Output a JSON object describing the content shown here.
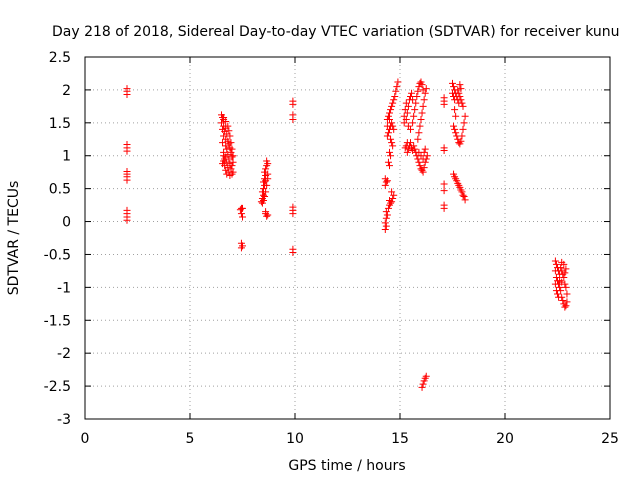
{
  "chart_data": {
    "type": "scatter",
    "title": "Day 218 of 2018, Sidereal Day-to-day VTEC variation (SDTVAR) for receiver kunu",
    "xlabel": "GPS time / hours",
    "ylabel": "SDTVAR / TECUs",
    "xlim": [
      0,
      25
    ],
    "ylim": [
      -3,
      2.5
    ],
    "x_ticks": [
      0,
      5,
      10,
      15,
      20,
      25
    ],
    "x_tick_labels": [
      "0",
      "5",
      "10",
      "15",
      "20",
      "25"
    ],
    "y_ticks": [
      -3,
      -2.5,
      -2,
      -1.5,
      -1,
      -0.5,
      0,
      0.5,
      1,
      1.5,
      2,
      2.5
    ],
    "y_tick_labels": [
      "-3",
      "-2.5",
      "-2",
      "-1.5",
      "-1",
      "-0.5",
      "0",
      "0.5",
      "1",
      "1.5",
      "2",
      "2.5"
    ],
    "grid": true,
    "marker": "+",
    "color": "#ff0000",
    "series": [
      {
        "name": "SDTVAR",
        "points": [
          [
            2.0,
            2.02
          ],
          [
            2.0,
            1.98
          ],
          [
            2.0,
            1.93
          ],
          [
            2.0,
            1.17
          ],
          [
            2.0,
            1.12
          ],
          [
            2.0,
            1.07
          ],
          [
            2.0,
            0.76
          ],
          [
            2.0,
            0.72
          ],
          [
            2.0,
            0.68
          ],
          [
            2.0,
            0.63
          ],
          [
            2.0,
            0.17
          ],
          [
            2.0,
            0.12
          ],
          [
            2.0,
            0.07
          ],
          [
            2.0,
            0.02
          ],
          [
            6.5,
            1.62
          ],
          [
            6.55,
            1.58
          ],
          [
            6.6,
            1.55
          ],
          [
            6.5,
            1.5
          ],
          [
            6.6,
            1.45
          ],
          [
            6.55,
            1.4
          ],
          [
            6.7,
            1.42
          ],
          [
            6.65,
            1.37
          ],
          [
            6.75,
            1.33
          ],
          [
            6.6,
            1.3
          ],
          [
            6.7,
            1.25
          ],
          [
            6.8,
            1.22
          ],
          [
            6.55,
            1.2
          ],
          [
            6.7,
            1.15
          ],
          [
            6.85,
            1.18
          ],
          [
            6.75,
            1.1
          ],
          [
            6.9,
            1.12
          ],
          [
            6.6,
            1.05
          ],
          [
            6.8,
            1.02
          ],
          [
            6.95,
            1.05
          ],
          [
            6.7,
            0.98
          ],
          [
            6.85,
            0.95
          ],
          [
            7.0,
            0.98
          ],
          [
            6.6,
            0.92
          ],
          [
            6.75,
            0.9
          ],
          [
            6.9,
            0.88
          ],
          [
            7.0,
            0.85
          ],
          [
            6.65,
            0.85
          ],
          [
            6.8,
            0.82
          ],
          [
            6.95,
            0.8
          ],
          [
            6.7,
            0.78
          ],
          [
            6.85,
            0.75
          ],
          [
            7.0,
            0.72
          ],
          [
            6.75,
            0.72
          ],
          [
            6.9,
            0.7
          ],
          [
            7.05,
            0.75
          ],
          [
            6.6,
            1.0
          ],
          [
            6.65,
            0.95
          ],
          [
            7.05,
            1.0
          ],
          [
            7.0,
            1.1
          ],
          [
            6.95,
            1.2
          ],
          [
            6.9,
            1.3
          ],
          [
            6.85,
            1.38
          ],
          [
            6.8,
            1.45
          ],
          [
            6.7,
            1.52
          ],
          [
            6.6,
            1.58
          ],
          [
            7.05,
            0.9
          ],
          [
            6.55,
            0.88
          ],
          [
            7.45,
            0.2
          ],
          [
            7.5,
            0.2
          ],
          [
            7.4,
            0.18
          ],
          [
            7.45,
            0.12
          ],
          [
            7.5,
            0.07
          ],
          [
            7.45,
            -0.33
          ],
          [
            7.5,
            -0.37
          ],
          [
            7.45,
            -0.4
          ],
          [
            8.4,
            0.3
          ],
          [
            8.45,
            0.35
          ],
          [
            8.5,
            0.4
          ],
          [
            8.45,
            0.45
          ],
          [
            8.5,
            0.5
          ],
          [
            8.55,
            0.55
          ],
          [
            8.5,
            0.6
          ],
          [
            8.55,
            0.65
          ],
          [
            8.6,
            0.7
          ],
          [
            8.55,
            0.75
          ],
          [
            8.6,
            0.8
          ],
          [
            8.65,
            0.85
          ],
          [
            8.7,
            0.88
          ],
          [
            8.65,
            0.92
          ],
          [
            8.6,
            0.62
          ],
          [
            8.7,
            0.72
          ],
          [
            8.45,
            0.28
          ],
          [
            8.5,
            0.32
          ],
          [
            8.55,
            0.38
          ],
          [
            8.6,
            0.45
          ],
          [
            8.65,
            0.55
          ],
          [
            8.7,
            0.65
          ],
          [
            8.6,
            0.12
          ],
          [
            8.65,
            0.08
          ],
          [
            8.7,
            0.1
          ],
          [
            8.6,
            0.15
          ],
          [
            9.9,
            1.83
          ],
          [
            9.9,
            1.78
          ],
          [
            9.9,
            1.62
          ],
          [
            9.9,
            1.55
          ],
          [
            9.9,
            0.22
          ],
          [
            9.9,
            0.17
          ],
          [
            9.9,
            0.12
          ],
          [
            9.9,
            -0.42
          ],
          [
            9.9,
            -0.47
          ],
          [
            14.3,
            -0.12
          ],
          [
            14.35,
            -0.07
          ],
          [
            14.3,
            -0.02
          ],
          [
            14.35,
            0.05
          ],
          [
            14.4,
            0.1
          ],
          [
            14.35,
            0.15
          ],
          [
            14.3,
            0.55
          ],
          [
            14.35,
            0.6
          ],
          [
            14.4,
            0.62
          ],
          [
            14.3,
            0.65
          ],
          [
            14.45,
            0.2
          ],
          [
            14.5,
            0.25
          ],
          [
            14.55,
            0.28
          ],
          [
            14.6,
            0.3
          ],
          [
            14.65,
            0.35
          ],
          [
            14.5,
            0.32
          ],
          [
            14.7,
            0.4
          ],
          [
            14.6,
            0.45
          ],
          [
            14.4,
            1.3
          ],
          [
            14.45,
            1.35
          ],
          [
            14.5,
            1.4
          ],
          [
            14.55,
            1.45
          ],
          [
            14.4,
            1.55
          ],
          [
            14.45,
            1.6
          ],
          [
            14.5,
            1.65
          ],
          [
            14.55,
            1.7
          ],
          [
            14.6,
            1.75
          ],
          [
            14.65,
            1.8
          ],
          [
            14.7,
            1.85
          ],
          [
            14.75,
            1.9
          ],
          [
            14.8,
            1.98
          ],
          [
            14.85,
            2.05
          ],
          [
            14.9,
            2.12
          ],
          [
            14.6,
            1.5
          ],
          [
            14.65,
            1.45
          ],
          [
            14.7,
            1.4
          ],
          [
            14.55,
            1.25
          ],
          [
            14.6,
            1.2
          ],
          [
            14.65,
            1.15
          ],
          [
            14.5,
            1.05
          ],
          [
            14.55,
            1.0
          ],
          [
            14.45,
            0.9
          ],
          [
            14.5,
            0.85
          ],
          [
            14.4,
            1.45
          ],
          [
            14.5,
            1.55
          ],
          [
            15.2,
            1.6
          ],
          [
            15.25,
            1.7
          ],
          [
            15.3,
            1.8
          ],
          [
            15.2,
            1.5
          ],
          [
            15.3,
            1.55
          ],
          [
            15.35,
            1.65
          ],
          [
            15.4,
            1.75
          ],
          [
            15.45,
            1.85
          ],
          [
            15.5,
            1.9
          ],
          [
            15.55,
            1.95
          ],
          [
            15.6,
            1.85
          ],
          [
            15.4,
            1.45
          ],
          [
            15.5,
            1.4
          ],
          [
            15.6,
            1.5
          ],
          [
            15.65,
            1.6
          ],
          [
            15.7,
            1.7
          ],
          [
            15.75,
            1.8
          ],
          [
            15.8,
            1.9
          ],
          [
            15.85,
            1.98
          ],
          [
            15.9,
            2.05
          ],
          [
            15.95,
            2.1
          ],
          [
            16.0,
            2.12
          ],
          [
            16.05,
            2.08
          ],
          [
            16.1,
            2.0
          ],
          [
            15.3,
            1.15
          ],
          [
            15.35,
            1.2
          ],
          [
            15.4,
            1.1
          ],
          [
            15.45,
            1.15
          ],
          [
            15.5,
            1.2
          ],
          [
            15.55,
            1.12
          ],
          [
            15.6,
            1.08
          ],
          [
            15.65,
            1.15
          ],
          [
            15.7,
            1.1
          ],
          [
            15.75,
            1.05
          ],
          [
            15.8,
            1.0
          ],
          [
            15.85,
            0.95
          ],
          [
            15.9,
            0.9
          ],
          [
            15.95,
            0.85
          ],
          [
            16.0,
            0.8
          ],
          [
            16.05,
            0.78
          ],
          [
            16.1,
            0.75
          ],
          [
            16.15,
            0.82
          ],
          [
            16.2,
            0.9
          ],
          [
            16.25,
            0.95
          ],
          [
            16.3,
            1.0
          ],
          [
            15.9,
            1.05
          ],
          [
            16.0,
            1.0
          ],
          [
            16.1,
            0.95
          ],
          [
            16.15,
            1.05
          ],
          [
            16.2,
            1.1
          ],
          [
            15.85,
            1.25
          ],
          [
            15.9,
            1.35
          ],
          [
            15.95,
            1.45
          ],
          [
            16.0,
            1.55
          ],
          [
            16.05,
            1.65
          ],
          [
            16.1,
            1.75
          ],
          [
            16.15,
            1.85
          ],
          [
            16.2,
            1.95
          ],
          [
            16.25,
            2.02
          ],
          [
            15.25,
            1.12
          ],
          [
            15.35,
            1.05
          ],
          [
            16.05,
            -2.52
          ],
          [
            16.1,
            -2.47
          ],
          [
            16.15,
            -2.42
          ],
          [
            16.2,
            -2.38
          ],
          [
            16.25,
            -2.35
          ],
          [
            17.1,
            1.88
          ],
          [
            17.1,
            1.83
          ],
          [
            17.1,
            1.78
          ],
          [
            17.1,
            1.12
          ],
          [
            17.1,
            1.08
          ],
          [
            17.1,
            0.57
          ],
          [
            17.1,
            0.47
          ],
          [
            17.1,
            0.25
          ],
          [
            17.1,
            0.2
          ],
          [
            17.5,
            2.1
          ],
          [
            17.55,
            2.05
          ],
          [
            17.6,
            2.0
          ],
          [
            17.65,
            1.95
          ],
          [
            17.7,
            1.9
          ],
          [
            17.5,
            1.95
          ],
          [
            17.55,
            1.9
          ],
          [
            17.6,
            1.85
          ],
          [
            17.75,
            2.0
          ],
          [
            17.8,
            1.95
          ],
          [
            17.85,
            1.9
          ],
          [
            17.9,
            1.85
          ],
          [
            17.95,
            1.8
          ],
          [
            18.0,
            1.75
          ],
          [
            17.75,
            1.85
          ],
          [
            17.8,
            1.8
          ],
          [
            17.85,
            2.08
          ],
          [
            17.9,
            2.02
          ],
          [
            17.6,
            1.7
          ],
          [
            17.65,
            1.6
          ],
          [
            17.55,
            1.45
          ],
          [
            17.6,
            1.4
          ],
          [
            17.65,
            1.35
          ],
          [
            17.7,
            1.3
          ],
          [
            17.75,
            1.25
          ],
          [
            17.8,
            1.2
          ],
          [
            17.85,
            1.18
          ],
          [
            17.9,
            1.22
          ],
          [
            17.95,
            1.3
          ],
          [
            18.0,
            1.4
          ],
          [
            18.05,
            1.5
          ],
          [
            18.1,
            1.6
          ],
          [
            17.55,
            0.72
          ],
          [
            17.6,
            0.68
          ],
          [
            17.65,
            0.65
          ],
          [
            17.7,
            0.62
          ],
          [
            17.75,
            0.58
          ],
          [
            17.8,
            0.55
          ],
          [
            17.85,
            0.52
          ],
          [
            17.9,
            0.48
          ],
          [
            17.95,
            0.45
          ],
          [
            18.0,
            0.4
          ],
          [
            18.05,
            0.38
          ],
          [
            18.1,
            0.33
          ],
          [
            22.4,
            -0.6
          ],
          [
            22.45,
            -0.65
          ],
          [
            22.5,
            -0.7
          ],
          [
            22.55,
            -0.75
          ],
          [
            22.6,
            -0.8
          ],
          [
            22.4,
            -0.75
          ],
          [
            22.45,
            -0.85
          ],
          [
            22.5,
            -0.9
          ],
          [
            22.55,
            -0.95
          ],
          [
            22.6,
            -1.0
          ],
          [
            22.4,
            -0.95
          ],
          [
            22.45,
            -1.05
          ],
          [
            22.5,
            -1.1
          ],
          [
            22.55,
            -1.15
          ],
          [
            22.65,
            -0.7
          ],
          [
            22.7,
            -0.75
          ],
          [
            22.75,
            -0.8
          ],
          [
            22.8,
            -0.85
          ],
          [
            22.85,
            -0.78
          ],
          [
            22.9,
            -0.72
          ],
          [
            22.65,
            -1.05
          ],
          [
            22.7,
            -1.15
          ],
          [
            22.75,
            -1.2
          ],
          [
            22.8,
            -1.25
          ],
          [
            22.85,
            -1.3
          ],
          [
            22.9,
            -1.28
          ],
          [
            22.95,
            -1.22
          ],
          [
            22.7,
            -0.62
          ],
          [
            22.8,
            -0.65
          ],
          [
            22.6,
            -0.9
          ],
          [
            22.7,
            -0.92
          ],
          [
            22.85,
            -0.95
          ],
          [
            22.9,
            -1.0
          ],
          [
            22.95,
            -1.1
          ]
        ]
      }
    ]
  }
}
